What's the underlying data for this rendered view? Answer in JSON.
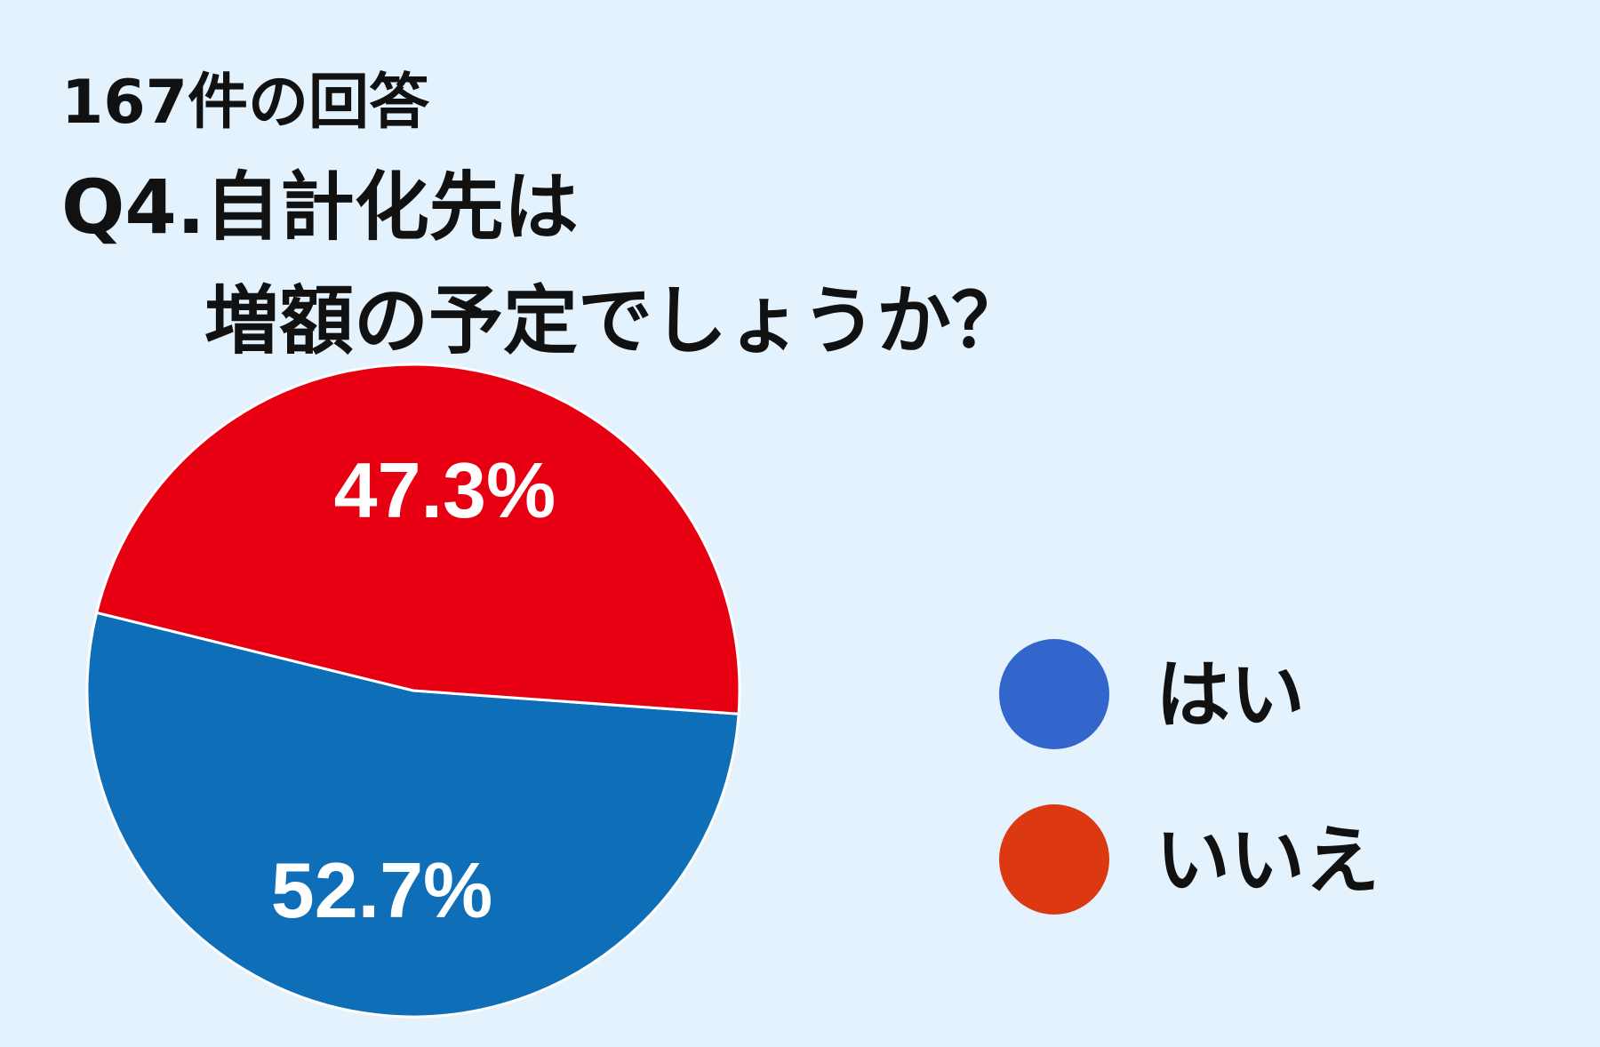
{
  "chart_data": {
    "type": "pie",
    "title": "167件の回答",
    "subtitle_lines": [
      "Q4.自計化先は",
      "増額の予定でしょうか？"
    ],
    "categories": [
      "はい",
      "いいえ"
    ],
    "values": [
      52.7,
      47.3
    ],
    "value_labels": [
      "52.7%",
      "47.3%"
    ],
    "colors": [
      "#0e6eb8",
      "#e60012"
    ],
    "legend_colors": [
      "#3366cc",
      "#dc3912"
    ]
  }
}
